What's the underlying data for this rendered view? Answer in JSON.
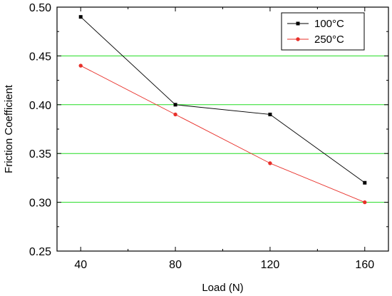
{
  "chart_data": {
    "type": "line",
    "x": [
      40,
      80,
      120,
      160
    ],
    "series": [
      {
        "name": "100°C",
        "values": [
          0.49,
          0.4,
          0.39,
          0.32
        ],
        "color": "#000000",
        "marker": "square"
      },
      {
        "name": "250°C",
        "values": [
          0.44,
          0.39,
          0.34,
          0.3
        ],
        "color": "#e8302a",
        "marker": "circle"
      }
    ],
    "title": "",
    "xlabel": "Load (N)",
    "ylabel": "Friction Coefficient",
    "xlim": [
      30,
      170
    ],
    "ylim": [
      0.25,
      0.5
    ],
    "xticks": [
      "40",
      "80",
      "120",
      "160"
    ],
    "yticks": [
      "0.25",
      "0.30",
      "0.35",
      "0.40",
      "0.45",
      "0.50"
    ],
    "grid": {
      "horizontal": true,
      "vertical": false,
      "color": "#22dd22"
    },
    "legend_position": "top-right"
  }
}
